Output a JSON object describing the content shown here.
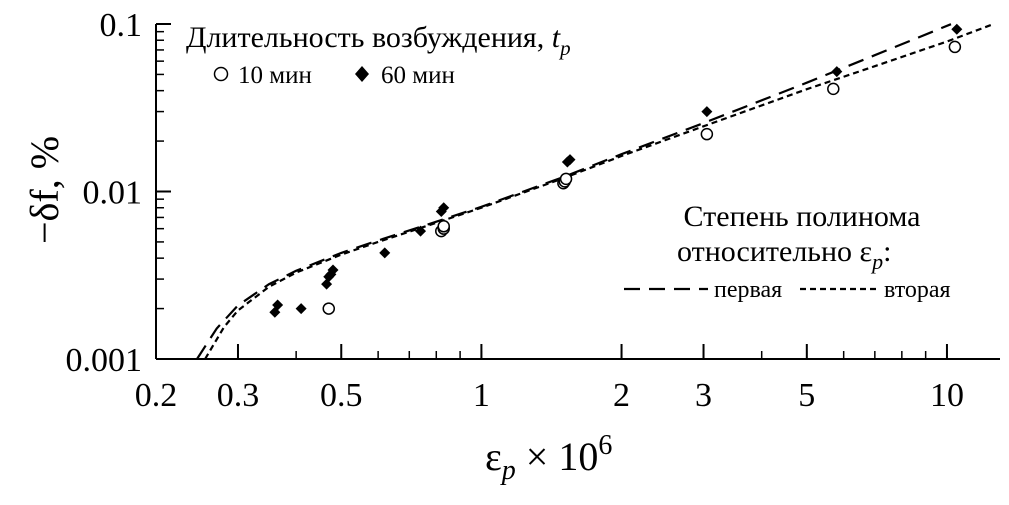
{
  "chart_data": {
    "type": "scatter",
    "title": "",
    "xlabel": {
      "main": "ε",
      "sub": "p",
      "rest": " × 10",
      "sup": "6"
    },
    "ylabel": "−δf, %",
    "x_scale": "log",
    "y_scale": "log",
    "xlim": [
      0.2,
      13
    ],
    "ylim": [
      0.001,
      0.1
    ],
    "x_ticks": [
      {
        "value": 0.2,
        "label": "0.2"
      },
      {
        "value": 0.3,
        "label": "0.3"
      },
      {
        "value": 0.5,
        "label": "0.5"
      },
      {
        "value": 1,
        "label": "1"
      },
      {
        "value": 2,
        "label": "2"
      },
      {
        "value": 3,
        "label": "3"
      },
      {
        "value": 5,
        "label": "5"
      },
      {
        "value": 10,
        "label": "10"
      }
    ],
    "y_ticks": [
      {
        "value": 0.001,
        "label": "0.001"
      },
      {
        "value": 0.01,
        "label": "0.01"
      },
      {
        "value": 0.1,
        "label": "0.1"
      }
    ],
    "grid": false,
    "legend": {
      "title": {
        "main": "Длительность возбуждения, ",
        "italic": "t",
        "sub": "p"
      },
      "placement": "top-left"
    },
    "series": [
      {
        "name": "10 мин",
        "marker": "circle-open",
        "x": [
          0.47,
          0.82,
          0.83,
          0.83,
          1.5,
          1.51,
          1.52,
          3.05,
          5.7,
          10.4
        ],
        "y": [
          0.002,
          0.0058,
          0.006,
          0.0062,
          0.0112,
          0.0115,
          0.0119,
          0.022,
          0.041,
          0.073
        ]
      },
      {
        "name": "60 мин",
        "marker": "diamond-filled",
        "x": [
          0.36,
          0.365,
          0.41,
          0.465,
          0.47,
          0.475,
          0.48,
          0.62,
          0.74,
          0.82,
          0.83,
          1.53,
          1.55,
          3.05,
          5.8,
          10.5
        ],
        "y": [
          0.0019,
          0.0021,
          0.002,
          0.0028,
          0.0031,
          0.0032,
          0.0034,
          0.0043,
          0.0058,
          0.0076,
          0.008,
          0.015,
          0.0155,
          0.03,
          0.052,
          0.093
        ]
      }
    ],
    "fits": [
      {
        "name": "первая",
        "style": "long-dash",
        "x": [
          0.245,
          0.27,
          0.3,
          0.35,
          0.4,
          0.5,
          0.6,
          0.8,
          1,
          1.5,
          2,
          3,
          5,
          7,
          10.2
        ],
        "y": [
          0.001,
          0.00152,
          0.00209,
          0.0028,
          0.00336,
          0.0043,
          0.0051,
          0.0066,
          0.0081,
          0.0122,
          0.0167,
          0.0256,
          0.0446,
          0.0651,
          0.0997
        ]
      },
      {
        "name": "вторая",
        "style": "short-dash",
        "x": [
          0.255,
          0.28,
          0.3,
          0.35,
          0.4,
          0.5,
          0.6,
          0.8,
          1,
          1.5,
          2,
          3,
          5,
          7,
          10,
          12.6
        ],
        "y": [
          0.001,
          0.00155,
          0.00195,
          0.0027,
          0.00328,
          0.0042,
          0.005,
          0.0065,
          0.008,
          0.012,
          0.0163,
          0.0245,
          0.0408,
          0.056,
          0.0786,
          0.1
        ]
      }
    ],
    "fits_legend": {
      "title_line1": "Степень полинома",
      "title_line2": {
        "main": "относительно ε",
        "sub": "p",
        "end": ":"
      }
    }
  }
}
